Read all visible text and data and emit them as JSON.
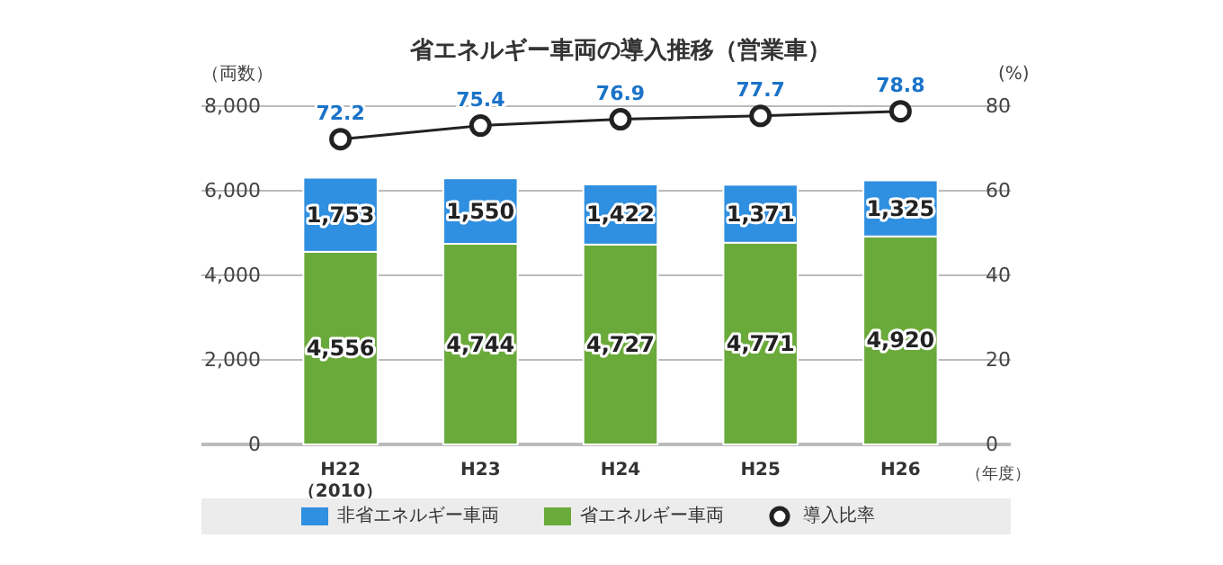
{
  "chart_data": {
    "type": "bar",
    "title": "省エネルギー車両の導入推移（営業車）",
    "ylabel": "（両数）",
    "y2label": "(%)",
    "xlabel": "（年度）",
    "categories": [
      "H22\n（2010）",
      "H23",
      "H24",
      "H25",
      "H26"
    ],
    "series": [
      {
        "name": "省エネルギー車両",
        "color": "#6aaa3a",
        "values": [
          4556,
          4744,
          4727,
          4771,
          4920
        ],
        "value_labels": [
          "4,556",
          "4,744",
          "4,727",
          "4,771",
          "4,920"
        ]
      },
      {
        "name": "非省エネルギー車両",
        "color": "#2f8fe0",
        "values": [
          1753,
          1550,
          1422,
          1371,
          1325
        ],
        "value_labels": [
          "1,753",
          "1,550",
          "1,422",
          "1,371",
          "1,325"
        ]
      },
      {
        "name": "導入比率",
        "type": "line",
        "axis": "y2",
        "color": "#222222",
        "values": [
          72.2,
          75.4,
          76.9,
          77.7,
          78.8
        ]
      }
    ],
    "stacked": true,
    "ylim": [
      0,
      8000
    ],
    "yticks": [
      {
        "value": 0,
        "label": "0"
      },
      {
        "value": 2000,
        "label": "2,000"
      },
      {
        "value": 4000,
        "label": "4,000"
      },
      {
        "value": 6000,
        "label": "6,000"
      },
      {
        "value": 8000,
        "label": "8,000"
      }
    ],
    "y2lim": [
      0,
      80
    ],
    "y2ticks": [
      0,
      20,
      40,
      60,
      80
    ],
    "grid": "y",
    "legend": "bottom",
    "marker": "circle",
    "data_labels": true
  }
}
